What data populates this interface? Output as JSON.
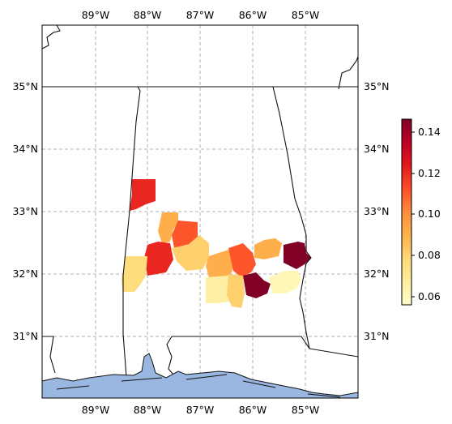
{
  "map": {
    "lon_labels": [
      "89°W",
      "88°W",
      "87°W",
      "86°W",
      "85°W"
    ],
    "lat_labels": [
      "31°N",
      "32°N",
      "33°N",
      "34°N",
      "35°N"
    ]
  },
  "colorbar": {
    "ticks": [
      "0.06",
      "0.08",
      "0.10",
      "0.12",
      "0.14"
    ],
    "range": [
      0.055,
      0.145
    ],
    "colormap": [
      "#ffffcc",
      "#ffeda0",
      "#fed976",
      "#feb24c",
      "#fd8d3c",
      "#fc4e2a",
      "#e31a1c",
      "#bd0026",
      "#800026"
    ]
  },
  "regions": [
    {
      "value": 0.12
    },
    {
      "value": 0.09
    },
    {
      "value": 0.11
    },
    {
      "value": 0.12
    },
    {
      "value": 0.08
    },
    {
      "value": 0.09
    },
    {
      "value": 0.11
    },
    {
      "value": 0.09
    },
    {
      "value": 0.075
    },
    {
      "value": 0.065
    },
    {
      "value": 0.08
    },
    {
      "value": 0.145
    },
    {
      "value": 0.06
    },
    {
      "value": 0.145
    }
  ]
}
